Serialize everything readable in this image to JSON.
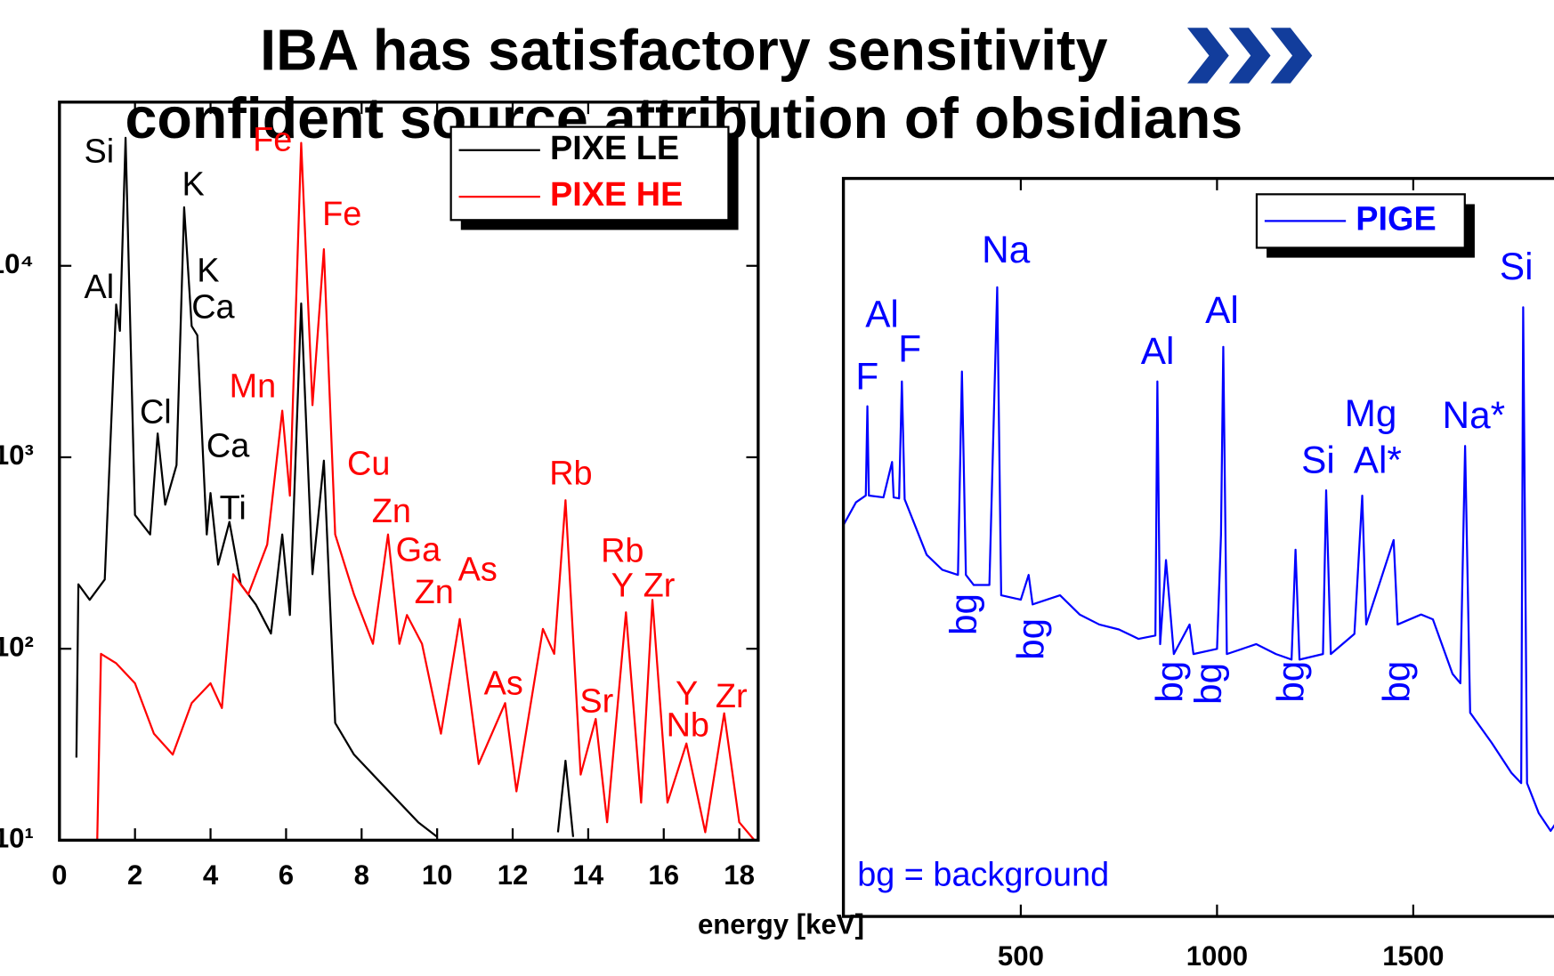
{
  "title": [
    "IBA has satisfactory sensitivity",
    "confident source attribution of obsidians"
  ],
  "chart_data": [
    {
      "type": "line",
      "x_label": "energy [keV]",
      "log_y": true,
      "legend": "upper right",
      "xlim": [
        0,
        18.5
      ],
      "xticks": [
        0,
        2,
        4,
        6,
        8,
        10,
        12,
        14,
        16,
        18
      ],
      "ylim": [
        10,
        71600
      ],
      "yticks": [
        {
          "value": 10,
          "label": "10¹"
        },
        {
          "value": 100,
          "label": "10²"
        },
        {
          "value": 1000,
          "label": "10³"
        },
        {
          "value": 10000,
          "label": "10⁴"
        }
      ],
      "series": [
        {
          "name": "PIXE LE",
          "color": "#000000",
          "x": [
            0.45,
            0.5,
            0.8,
            1.2,
            1.5,
            1.6,
            1.75,
            2.0,
            2.4,
            2.6,
            2.8,
            3.1,
            3.3,
            3.5,
            3.65,
            3.9,
            4.0,
            4.2,
            4.5,
            4.8,
            5.2,
            5.6,
            5.9,
            6.1,
            6.4,
            6.7,
            7.0,
            7.3,
            7.8,
            8.5,
            9.5,
            10.0,
            11.5,
            13.2,
            13.4,
            13.6
          ],
          "values": [
            27,
            217,
            180,
            230,
            6280,
            4570,
            46600,
            500,
            395,
            1330,
            565,
            910,
            20200,
            4840,
            4340,
            395,
            650,
            275,
            460,
            217,
            170,
            120,
            395,
            150,
            6350,
            245,
            960,
            41,
            28,
            20,
            12.4,
            10.4,
            null,
            11,
            26,
            10.4
          ]
        },
        {
          "name": "PIXE HE",
          "color": "#ff0000",
          "x": [
            1.0,
            1.1,
            1.5,
            2.0,
            2.5,
            3.0,
            3.5,
            4.0,
            4.3,
            4.6,
            5.0,
            5.5,
            5.9,
            6.1,
            6.4,
            6.7,
            7.0,
            7.3,
            7.8,
            8.3,
            8.7,
            9.0,
            9.2,
            9.6,
            10.1,
            10.6,
            11.1,
            11.8,
            12.1,
            12.8,
            13.1,
            13.4,
            13.8,
            14.2,
            14.5,
            15.0,
            15.4,
            15.7,
            16.1,
            16.6,
            17.1,
            17.6,
            18.0,
            18.4
          ],
          "values": [
            10,
            94,
            84,
            66,
            36,
            28,
            52,
            66,
            49,
            245,
            192,
            350,
            1750,
            630,
            43800,
            1870,
            12200,
            395,
            192,
            106,
            395,
            106,
            150,
            106,
            36,
            143,
            25,
            52,
            18,
            127,
            94,
            597,
            22,
            43,
            12.4,
            155,
            15.7,
            180,
            15.7,
            32,
            11,
            46,
            12.4,
            10
          ]
        }
      ],
      "annotations": [
        {
          "text": "Si",
          "color": "#000000"
        },
        {
          "text": "Al",
          "color": "#000000"
        },
        {
          "text": "K",
          "color": "#000000"
        },
        {
          "text": "K",
          "color": "#000000"
        },
        {
          "text": "Ca",
          "color": "#000000"
        },
        {
          "text": "Cl",
          "color": "#000000"
        },
        {
          "text": "Ca",
          "color": "#000000"
        },
        {
          "text": "Ti",
          "color": "#000000"
        },
        {
          "text": "Fe",
          "color": "#ff0000"
        },
        {
          "text": "Fe",
          "color": "#ff0000"
        },
        {
          "text": "Mn",
          "color": "#ff0000"
        },
        {
          "text": "Cu",
          "color": "#ff0000"
        },
        {
          "text": "Zn",
          "color": "#ff0000"
        },
        {
          "text": "Ga",
          "color": "#ff0000"
        },
        {
          "text": "Zn",
          "color": "#ff0000"
        },
        {
          "text": "As",
          "color": "#ff0000"
        },
        {
          "text": "Rb",
          "color": "#ff0000"
        },
        {
          "text": "As",
          "color": "#ff0000"
        },
        {
          "text": "Sr",
          "color": "#ff0000"
        },
        {
          "text": "Rb",
          "color": "#ff0000"
        },
        {
          "text": "Y",
          "color": "#ff0000"
        },
        {
          "text": "Zr",
          "color": "#ff0000"
        },
        {
          "text": "Y",
          "color": "#ff0000"
        },
        {
          "text": "Nb",
          "color": "#ff0000"
        },
        {
          "text": "Zr",
          "color": "#ff0000"
        }
      ]
    },
    {
      "type": "line",
      "log_y": true,
      "legend": "upper right",
      "note": "bg = background",
      "xlim": [
        48,
        1900
      ],
      "xticks": [
        500,
        1000,
        1500
      ],
      "ylim": [
        1,
        100000
      ],
      "series": [
        {
          "name": "PIGE",
          "color": "#0000ff",
          "x": [
            48,
            80,
            105,
            109,
            113,
            150,
            172,
            176,
            190,
            197,
            204,
            260,
            300,
            340,
            350,
            360,
            380,
            420,
            440,
            450,
            500,
            520,
            530,
            600,
            650,
            700,
            750,
            800,
            843,
            848,
            855,
            870,
            890,
            930,
            940,
            1000,
            1010,
            1016,
            1025,
            1100,
            1150,
            1190,
            1200,
            1210,
            1270,
            1278,
            1290,
            1350,
            1370,
            1380,
            1450,
            1460,
            1520,
            1550,
            1600,
            1620,
            1632,
            1645,
            1700,
            1750,
            1775,
            1780,
            1790,
            1820,
            1850,
            1880
          ],
          "values": [
            448,
            640,
            711,
            2860,
            711,
            690,
            1200,
            690,
            680,
            4210,
            670,
            282,
            223,
            206,
            4910,
            206,
            176,
            176,
            18300,
            150,
            140,
            206,
            130,
            150,
            111,
            95,
            88,
            76,
            80,
            4210,
            70,
            260,
            60,
            95,
            60,
            65,
            385,
            7230,
            60,
            70,
            60,
            55,
            305,
            55,
            60,
            770,
            60,
            82,
            710,
            95,
            355,
            95,
            111,
            103,
            44,
            38,
            1540,
            24,
            15,
            9.4,
            8,
            13400,
            8,
            5,
            3.8,
            5
          ]
        }
      ],
      "annotations": [
        {
          "text": "Na",
          "color": "#0000ff"
        },
        {
          "text": "Al",
          "color": "#0000ff"
        },
        {
          "text": "F",
          "color": "#0000ff"
        },
        {
          "text": "F",
          "color": "#0000ff"
        },
        {
          "text": "Al",
          "color": "#0000ff"
        },
        {
          "text": "Al",
          "color": "#0000ff"
        },
        {
          "text": "Mg",
          "color": "#0000ff"
        },
        {
          "text": "Si",
          "color": "#0000ff"
        },
        {
          "text": "Al*",
          "color": "#0000ff"
        },
        {
          "text": "Na*",
          "color": "#0000ff"
        },
        {
          "text": "Si",
          "color": "#0000ff"
        },
        {
          "text": "bg",
          "color": "#0000ff"
        },
        {
          "text": "bg",
          "color": "#0000ff"
        },
        {
          "text": "bg",
          "color": "#0000ff"
        },
        {
          "text": "bg",
          "color": "#0000ff"
        },
        {
          "text": "bg",
          "color": "#0000ff"
        },
        {
          "text": "bg",
          "color": "#0000ff"
        }
      ]
    }
  ]
}
